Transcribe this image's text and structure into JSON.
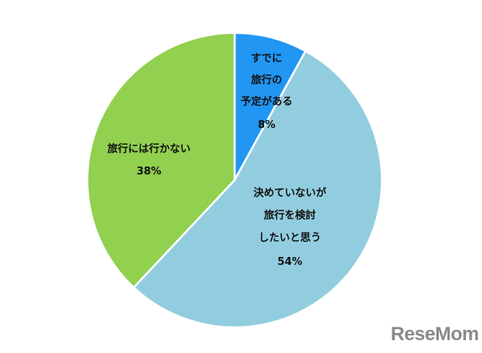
{
  "chart_data": {
    "type": "pie",
    "start": "top",
    "direction": "clockwise",
    "slices": [
      {
        "label_lines": [
          "すでに",
          "旅行の",
          "予定がある",
          "8%"
        ],
        "value": 8,
        "color": "#2196f3"
      },
      {
        "label_lines": [
          "決めていないが",
          "旅行を検討",
          "したいと思う",
          "54%"
        ],
        "value": 54,
        "color": "#92cddf"
      },
      {
        "label_lines": [
          "旅行には行かない",
          "38%"
        ],
        "value": 38,
        "color": "#92d050"
      }
    ]
  },
  "logo": {
    "text": "ReseMom"
  }
}
